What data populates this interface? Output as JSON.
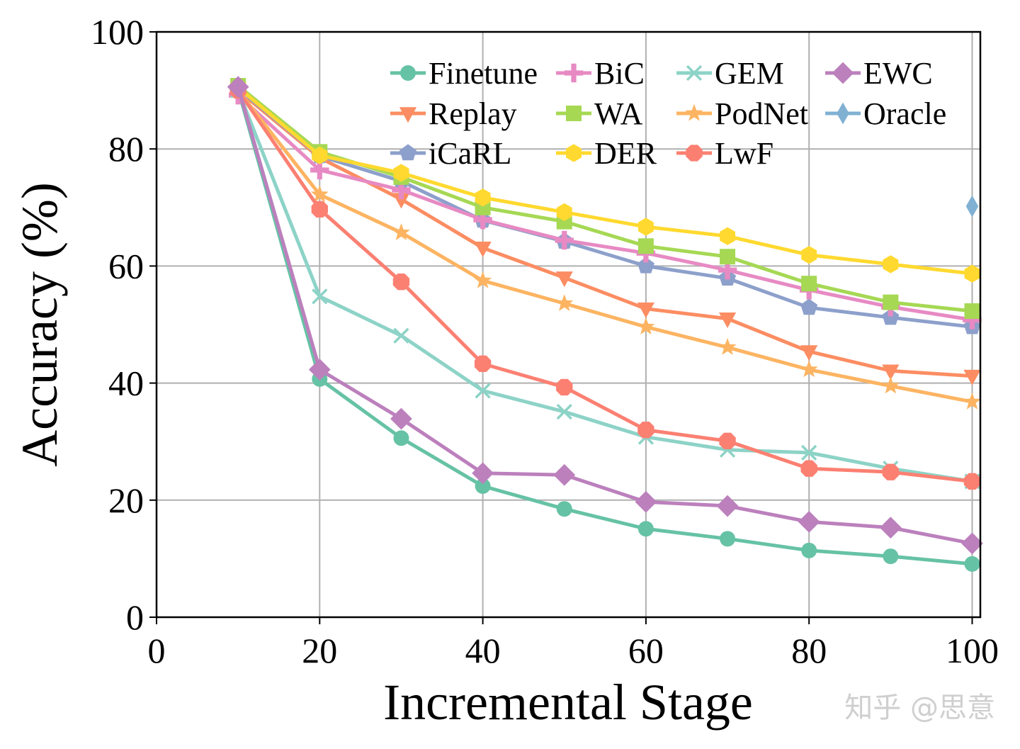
{
  "chart_data": {
    "type": "line",
    "title": "",
    "xlabel": "Incremental Stage",
    "ylabel": "Accuracy (%)",
    "xlim": [
      0,
      101
    ],
    "ylim": [
      0,
      100
    ],
    "xticks": [
      "0",
      "20",
      "40",
      "60",
      "80",
      "100"
    ],
    "yticks": [
      "0",
      "20",
      "40",
      "60",
      "80",
      "100"
    ],
    "grid": true,
    "legend_position": "top-right",
    "x": [
      10,
      20,
      30,
      40,
      50,
      60,
      70,
      80,
      90,
      100
    ],
    "series": [
      {
        "name": "Finetune",
        "color": "#66c2a5",
        "marker": "circle",
        "values": [
          90.2,
          40.7,
          30.6,
          22.4,
          18.5,
          15.1,
          13.4,
          11.4,
          10.4,
          9.1
        ]
      },
      {
        "name": "Replay",
        "color": "#fc8d62",
        "marker": "triangle-down",
        "values": [
          90.0,
          78.5,
          71.4,
          63.1,
          58.0,
          52.7,
          51.0,
          45.4,
          42.1,
          41.2
        ]
      },
      {
        "name": "iCaRL",
        "color": "#8da0cb",
        "marker": "pentagon",
        "values": [
          90.3,
          78.8,
          74.5,
          67.8,
          64.2,
          60.0,
          57.9,
          52.9,
          51.2,
          49.6
        ]
      },
      {
        "name": "BiC",
        "color": "#e78ac3",
        "marker": "plus",
        "values": [
          89.2,
          76.4,
          73.0,
          67.9,
          64.4,
          62.2,
          59.3,
          55.9,
          53.0,
          50.8
        ]
      },
      {
        "name": "WA",
        "color": "#a6d854",
        "marker": "square",
        "values": [
          90.8,
          79.5,
          75.2,
          70.0,
          67.6,
          63.4,
          61.6,
          57.0,
          53.8,
          52.3
        ]
      },
      {
        "name": "DER",
        "color": "#ffd92f",
        "marker": "hexagon",
        "values": [
          90.5,
          78.9,
          75.9,
          71.7,
          69.2,
          66.7,
          65.1,
          61.9,
          60.3,
          58.7
        ]
      },
      {
        "name": "GEM",
        "color": "#8dd3c7",
        "marker": "x",
        "values": [
          90.0,
          54.8,
          48.1,
          38.7,
          35.1,
          30.8,
          28.6,
          28.1,
          25.4,
          23.2
        ]
      },
      {
        "name": "PodNet",
        "color": "#fdb462",
        "marker": "star",
        "values": [
          90.0,
          72.2,
          65.7,
          57.5,
          53.6,
          49.6,
          46.1,
          42.3,
          39.5,
          36.8
        ]
      },
      {
        "name": "LwF",
        "color": "#fb8072",
        "marker": "octagon",
        "values": [
          90.0,
          69.7,
          57.3,
          43.3,
          39.3,
          32.0,
          30.1,
          25.4,
          24.8,
          23.2
        ]
      },
      {
        "name": "EWC",
        "color": "#bc80bd",
        "marker": "diamond",
        "values": [
          90.6,
          42.3,
          33.9,
          24.6,
          24.3,
          19.7,
          19.0,
          16.3,
          15.3,
          12.6
        ]
      },
      {
        "name": "Oracle",
        "color": "#80b1d3",
        "marker": "thin-diamond",
        "x": [
          100
        ],
        "values": [
          70.2
        ]
      }
    ]
  },
  "watermark": "知乎 @思意"
}
